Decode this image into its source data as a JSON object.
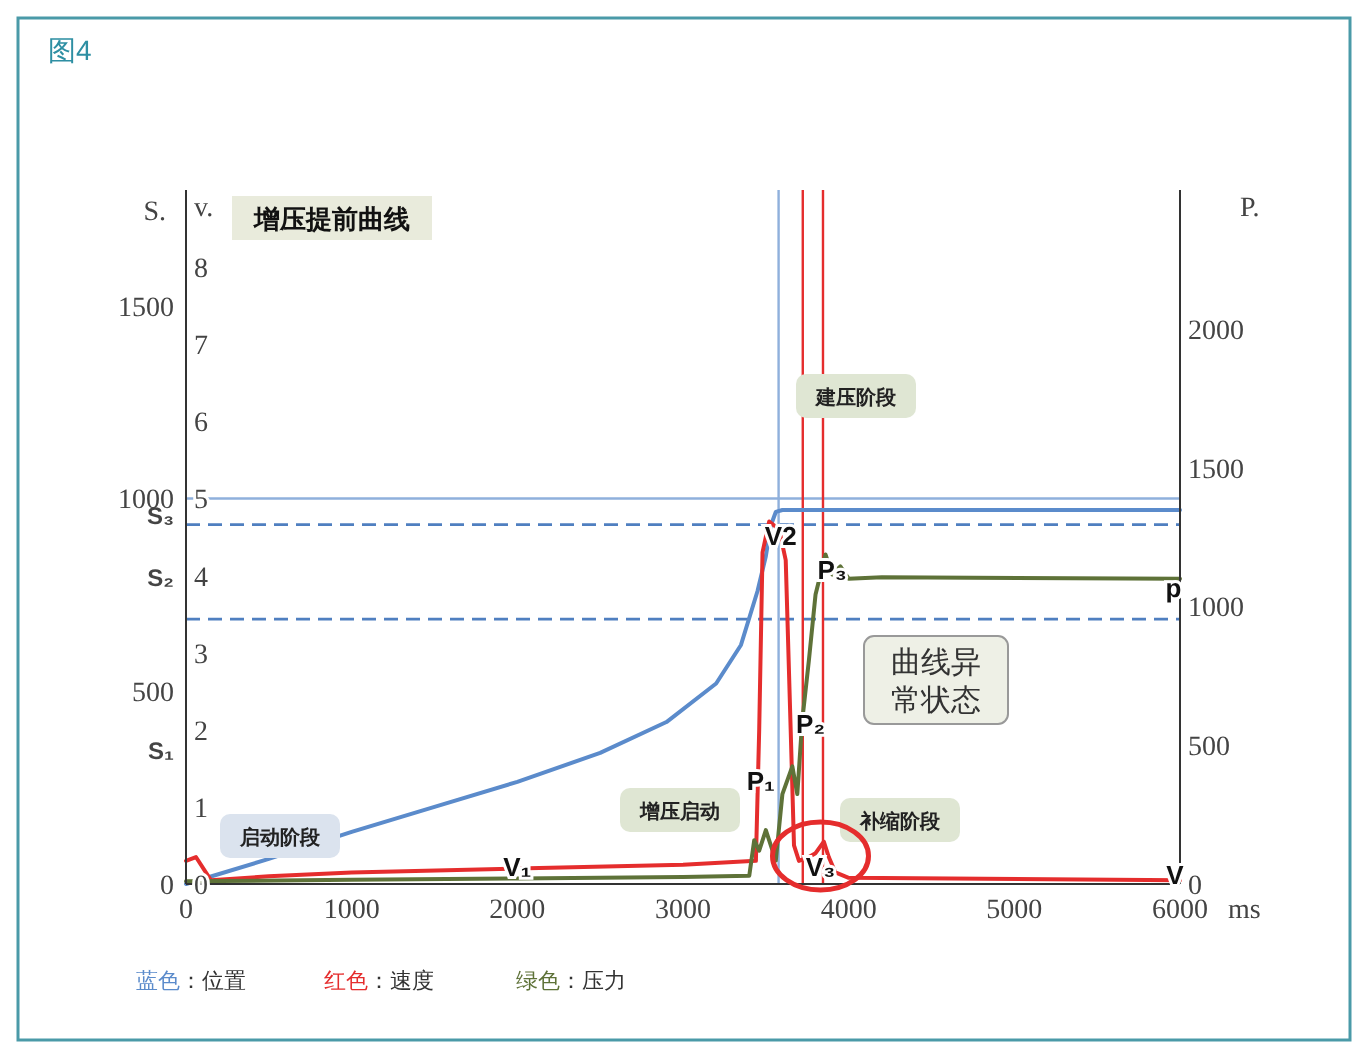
{
  "chart_data": {
    "type": "line",
    "title": "增压提前曲线",
    "ylabel": "S.",
    "y3label": "v.",
    "y2label": "P.",
    "xlabel": "ms",
    "xlim": [
      0,
      6000
    ],
    "xticks": [
      0,
      1000,
      2000,
      3000,
      4000,
      5000,
      6000
    ],
    "ylim": [
      0,
      1800
    ],
    "yticks": [
      0,
      {
        "value": 350,
        "label": "S₁"
      },
      500,
      {
        "value": 800,
        "label": "S₂"
      },
      {
        "value": 960,
        "label": "S₃"
      },
      1000,
      1500
    ],
    "y3lim": [
      0,
      9
    ],
    "y3ticks": [
      0,
      1,
      2,
      3,
      4,
      5,
      6,
      7,
      8
    ],
    "y2lim": [
      0,
      2500
    ],
    "y2ticks": [
      0,
      500,
      1000,
      1500,
      2000
    ],
    "grid": false,
    "legend": "bottom",
    "marker": "none",
    "line_style": "solid",
    "series": [
      {
        "name": "蓝色：位置",
        "color": "#5b8bcb",
        "axis": "y",
        "x": [
          0,
          500,
          1000,
          1500,
          2000,
          2500,
          2900,
          3200,
          3350,
          3450,
          3500,
          3530,
          3560,
          3600,
          3650,
          6000
        ],
        "values": [
          0,
          65,
          135,
          200,
          265,
          340,
          420,
          520,
          620,
          760,
          850,
          930,
          965,
          970,
          970,
          970
        ]
      },
      {
        "name": "红色：速度",
        "color": "#e52d2d",
        "axis": "y3",
        "x": [
          0,
          60,
          150,
          500,
          1000,
          2000,
          3000,
          3440,
          3460,
          3480,
          3520,
          3580,
          3620,
          3650,
          3670,
          3700,
          3760,
          3800,
          3850,
          3880,
          3920,
          4000,
          6000
        ],
        "values": [
          0.3,
          0.35,
          0.05,
          0.1,
          0.15,
          0.2,
          0.25,
          0.3,
          2.0,
          4.3,
          4.7,
          4.6,
          4.2,
          2.0,
          0.5,
          0.3,
          0.35,
          0.4,
          0.55,
          0.35,
          0.15,
          0.08,
          0.05
        ]
      },
      {
        "name": "绿色：压力",
        "color": "#5e7238",
        "axis": "y2",
        "x": [
          0,
          1000,
          2000,
          3000,
          3400,
          3430,
          3460,
          3500,
          3560,
          3600,
          3660,
          3690,
          3720,
          3760,
          3800,
          3860,
          3900,
          3950,
          4000,
          4200,
          6000
        ],
        "values": [
          10,
          15,
          20,
          25,
          30,
          158,
          120,
          194,
          84,
          324,
          424,
          324,
          590,
          806,
          1043,
          1187,
          1115,
          1144,
          1100,
          1105,
          1100
        ]
      }
    ],
    "ref_lines": [
      {
        "axis": "y",
        "value": 1000,
        "color": "#8fb0dc",
        "line_style": "solid"
      },
      {
        "axis": "y",
        "value": 932,
        "color": "#4f7fc0",
        "line_style": "dashed"
      },
      {
        "axis": "y",
        "value": 687,
        "color": "#4f7fc0",
        "line_style": "dashed"
      },
      {
        "axis": "x",
        "value": 3577,
        "color": "#8fb0dc",
        "line_style": "solid"
      },
      {
        "axis": "x",
        "value": 3723,
        "color": "#e52d2d",
        "line_style": "solid"
      },
      {
        "axis": "x",
        "value": 3845,
        "color": "#e52d2d",
        "line_style": "solid"
      }
    ],
    "annotations": [
      "图4",
      {
        "text": "V₁",
        "x": 2000,
        "y": 47
      },
      {
        "text": "V2",
        "x": 3590,
        "y": 906
      },
      {
        "text": "V₃",
        "x": 3830,
        "y": 47
      },
      {
        "text": "P₁",
        "x": 3470,
        "y": 270
      },
      {
        "text": "P₂",
        "x": 3770,
        "y": 417
      },
      {
        "text": "P₃",
        "x": 3900,
        "y": 818
      },
      {
        "text": "p",
        "x": 5960,
        "y": 771
      },
      {
        "text": "V",
        "x": 5970,
        "y": 26
      },
      "启动阶段",
      "增压启动",
      "建压阶段",
      "补缩阶段",
      "曲线异常状态"
    ]
  }
}
